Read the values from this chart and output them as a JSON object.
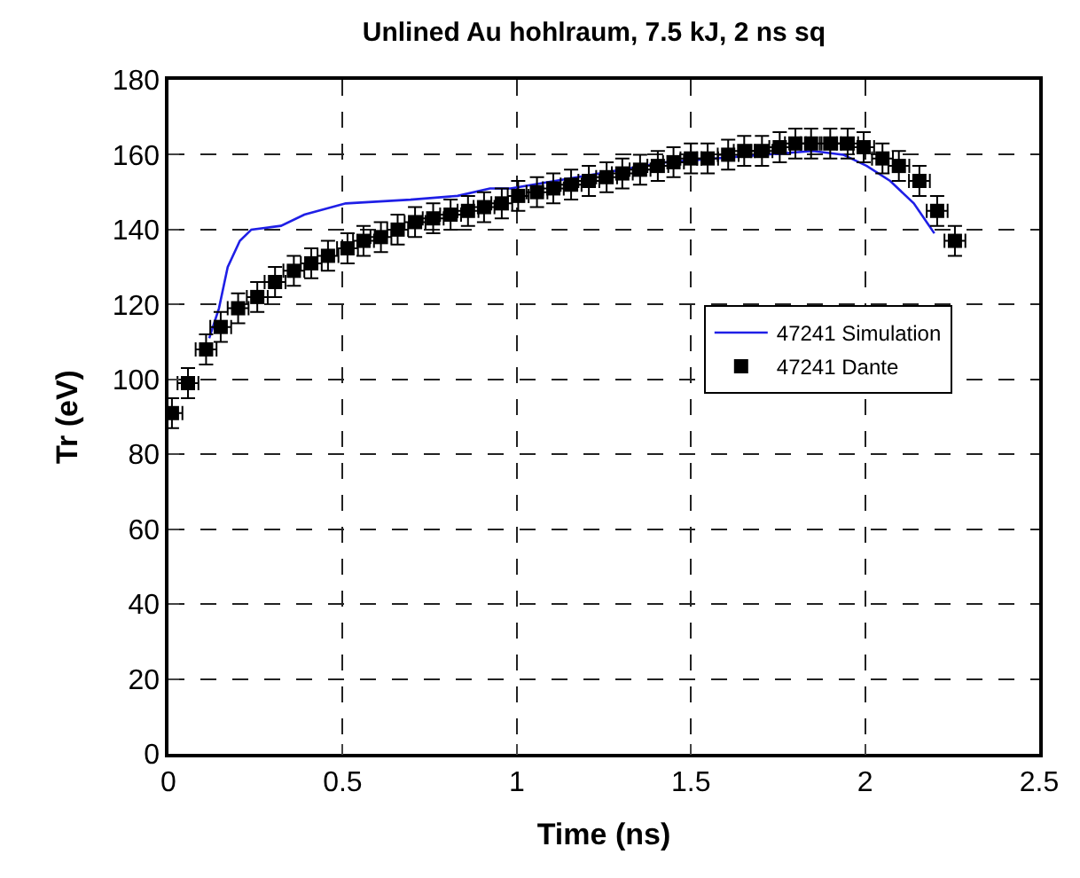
{
  "chart_data": {
    "type": "line",
    "title": "Unlined Au hohlraum, 7.5 kJ, 2 ns sq",
    "xlabel": "Time (ns)",
    "ylabel": "Tr (eV)",
    "xlim": [
      0,
      2.5
    ],
    "xticks": [
      0,
      0.5,
      1,
      1.5,
      2,
      2.5
    ],
    "ylim": [
      0,
      180
    ],
    "yticks": [
      0,
      20,
      40,
      60,
      80,
      100,
      120,
      140,
      160,
      180
    ],
    "grid": true,
    "legend": "right",
    "series": [
      {
        "name": "47241 Simulation",
        "color": "#1f1fe6",
        "line_style": "solid",
        "marker": "none",
        "x": [
          0.117,
          0.145,
          0.17,
          0.205,
          0.238,
          0.323,
          0.39,
          0.509,
          0.695,
          0.83,
          0.923,
          0.982,
          1.43,
          1.85,
          1.937,
          2.005,
          2.072,
          2.14,
          2.199
        ],
        "values": [
          111,
          119,
          130,
          137,
          140,
          141,
          144,
          147,
          148,
          149,
          151,
          151,
          158,
          161,
          160,
          157,
          153,
          147,
          139
        ]
      },
      {
        "name": "47241 Dante",
        "type": "scatter",
        "color": "#000000",
        "marker": "square",
        "x": [
          0.01,
          0.056,
          0.108,
          0.15,
          0.2,
          0.255,
          0.306,
          0.36,
          0.41,
          0.458,
          0.514,
          0.56,
          0.61,
          0.658,
          0.708,
          0.76,
          0.81,
          0.86,
          0.906,
          0.957,
          1.004,
          1.058,
          1.105,
          1.156,
          1.207,
          1.258,
          1.303,
          1.354,
          1.405,
          1.45,
          1.5,
          1.548,
          1.607,
          1.653,
          1.704,
          1.755,
          1.8,
          1.845,
          1.9,
          1.95,
          1.996,
          2.05,
          2.097,
          2.156,
          2.207,
          2.258
        ],
        "values": [
          91,
          99,
          108,
          114,
          119,
          122,
          126,
          129,
          131,
          133,
          135,
          137,
          138,
          140,
          142,
          143,
          144,
          145,
          146,
          147,
          149,
          150,
          151,
          152,
          153,
          154,
          155,
          156,
          157,
          158,
          159,
          159,
          160,
          161,
          161,
          162,
          163,
          163,
          163,
          163,
          162,
          159,
          157,
          153,
          145,
          137
        ],
        "errors": [
          4,
          4,
          4,
          4,
          4,
          4,
          4,
          4,
          4,
          4,
          4,
          4,
          4,
          4,
          4,
          4,
          4,
          4,
          4,
          4,
          4,
          4,
          4,
          4,
          4,
          4,
          4,
          4,
          4,
          4,
          4,
          4,
          4,
          4,
          4,
          4,
          4,
          4,
          4,
          4,
          4,
          4,
          4,
          4,
          4,
          4
        ],
        "xerrors": [
          0.03,
          0.03,
          0.03,
          0.03,
          0.03,
          0.03,
          0.03,
          0.03,
          0.03,
          0.03,
          0.03,
          0.03,
          0.03,
          0.03,
          0.03,
          0.03,
          0.03,
          0.03,
          0.03,
          0.03,
          0.03,
          0.03,
          0.03,
          0.03,
          0.03,
          0.03,
          0.03,
          0.03,
          0.03,
          0.03,
          0.03,
          0.03,
          0.03,
          0.03,
          0.03,
          0.03,
          0.03,
          0.03,
          0.03,
          0.03,
          0.03,
          0.03,
          0.03,
          0.03,
          0.03,
          0.03
        ]
      }
    ]
  }
}
